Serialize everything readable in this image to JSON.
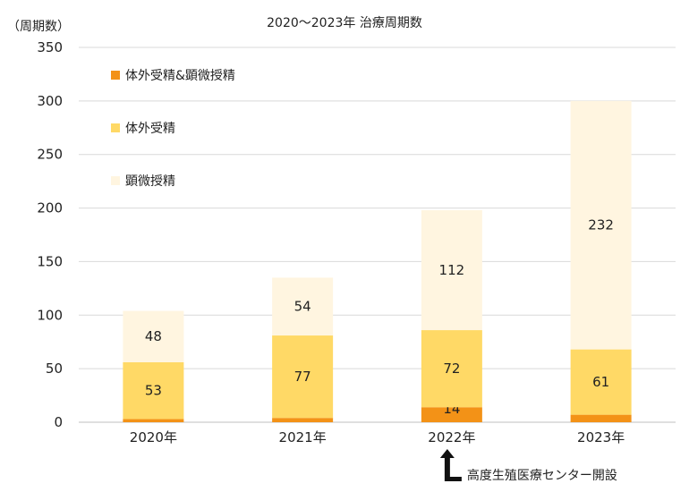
{
  "chart_data": {
    "type": "bar",
    "stacked": true,
    "title": "2020～2023年 治療周期数",
    "ylabel": "（周期数）",
    "xlabel": "",
    "ylim": [
      0,
      350
    ],
    "yticks": [
      0,
      50,
      100,
      150,
      200,
      250,
      300,
      350
    ],
    "categories": [
      "2020年",
      "2021年",
      "2022年",
      "2023年"
    ],
    "series": [
      {
        "name": "体外受精&顕微授精",
        "color": "#F39217",
        "values": [
          3,
          4,
          14,
          7
        ]
      },
      {
        "name": "体外受精",
        "color": "#FFD966",
        "values": [
          53,
          77,
          72,
          61
        ]
      },
      {
        "name": "顕微授精",
        "color": "#FFF5E0",
        "values": [
          48,
          54,
          112,
          232
        ]
      }
    ],
    "gridlines": true,
    "legend_position": "top-left",
    "annotation": {
      "text": "高度生殖医療センター開設",
      "category": "2022年",
      "icon": "corner-arrow-up-icon"
    }
  }
}
